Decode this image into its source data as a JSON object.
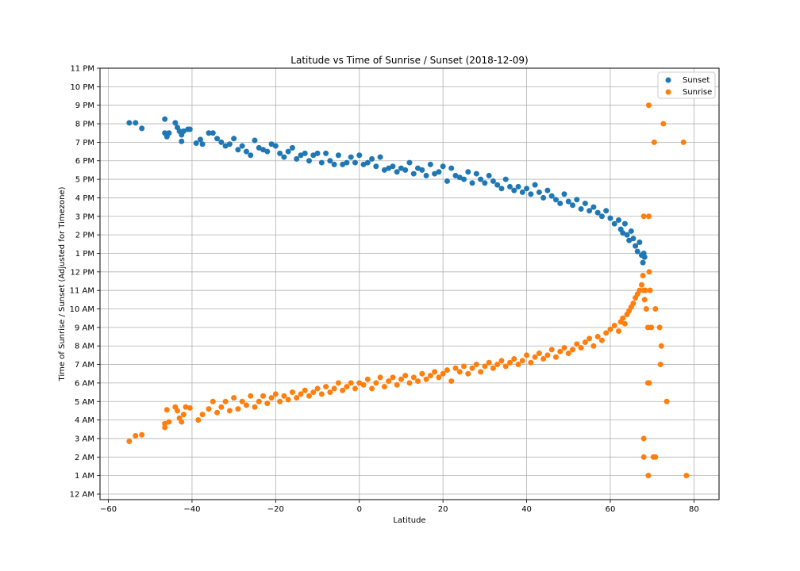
{
  "chart_data": {
    "type": "scatter",
    "title": "Latitude vs Time of Sunrise / Sunset (2018-12-09)",
    "xlabel": "Latitude",
    "ylabel": "Time of Sunrise / Sunset (Adjusted for Timezone)",
    "xlim": [
      -62,
      86
    ],
    "ylim": [
      -0.3,
      23
    ],
    "xticks": [
      -60,
      -40,
      -20,
      0,
      20,
      40,
      60,
      80
    ],
    "yticks": [
      0,
      1,
      2,
      3,
      4,
      5,
      6,
      7,
      8,
      9,
      10,
      11,
      12,
      13,
      14,
      15,
      16,
      17,
      18,
      19,
      20,
      21,
      22,
      23
    ],
    "ytick_labels": [
      "12 AM",
      "1 AM",
      "2 AM",
      "3 AM",
      "4 AM",
      "5 AM",
      "6 AM",
      "7 AM",
      "8 AM",
      "9 AM",
      "10 AM",
      "11 AM",
      "12 PM",
      "1 PM",
      "2 PM",
      "3 PM",
      "4 PM",
      "5 PM",
      "6 PM",
      "7 PM",
      "8 PM",
      "9 PM",
      "10 PM",
      "11 PM"
    ],
    "grid": true,
    "legend_position": "top-right",
    "series": [
      {
        "name": "Sunset",
        "color": "#1f77b4",
        "points": [
          [
            -55,
            20.05
          ],
          [
            -53.5,
            20.05
          ],
          [
            -52,
            19.75
          ],
          [
            -46.5,
            20.25
          ],
          [
            -46.5,
            19.5
          ],
          [
            -46,
            19.3
          ],
          [
            -45.5,
            19.5
          ],
          [
            -44,
            20.05
          ],
          [
            -43.5,
            19.8
          ],
          [
            -43,
            19.6
          ],
          [
            -42.5,
            19.4
          ],
          [
            -42.5,
            19.05
          ],
          [
            -42,
            19.6
          ],
          [
            -41,
            19.7
          ],
          [
            -40.5,
            19.7
          ],
          [
            -39,
            18.95
          ],
          [
            -38,
            19.15
          ],
          [
            -37.5,
            18.9
          ],
          [
            -36,
            19.5
          ],
          [
            -35,
            19.5
          ],
          [
            -34,
            19.2
          ],
          [
            -33,
            19.0
          ],
          [
            -32,
            18.8
          ],
          [
            -31,
            18.9
          ],
          [
            -30,
            19.2
          ],
          [
            -29,
            18.6
          ],
          [
            -28,
            18.8
          ],
          [
            -27,
            18.5
          ],
          [
            -26,
            18.3
          ],
          [
            -25,
            19.1
          ],
          [
            -24,
            18.7
          ],
          [
            -23,
            18.6
          ],
          [
            -22,
            18.5
          ],
          [
            -21,
            18.9
          ],
          [
            -20,
            18.8
          ],
          [
            -19,
            18.4
          ],
          [
            -18,
            18.2
          ],
          [
            -17,
            18.5
          ],
          [
            -16,
            18.7
          ],
          [
            -15,
            18.1
          ],
          [
            -14,
            18.3
          ],
          [
            -13,
            18.4
          ],
          [
            -12,
            18.0
          ],
          [
            -11,
            18.3
          ],
          [
            -10,
            18.4
          ],
          [
            -9,
            17.9
          ],
          [
            -8,
            18.4
          ],
          [
            -7,
            18.0
          ],
          [
            -6,
            17.8
          ],
          [
            -5,
            18.3
          ],
          [
            -4,
            17.8
          ],
          [
            -3,
            17.9
          ],
          [
            -2,
            18.2
          ],
          [
            -1,
            17.9
          ],
          [
            0,
            18.3
          ],
          [
            1,
            17.8
          ],
          [
            2,
            17.9
          ],
          [
            3,
            18.1
          ],
          [
            4,
            17.7
          ],
          [
            5,
            18.2
          ],
          [
            6,
            17.5
          ],
          [
            7,
            17.6
          ],
          [
            8,
            17.7
          ],
          [
            9,
            17.4
          ],
          [
            10,
            17.6
          ],
          [
            11,
            17.5
          ],
          [
            12,
            17.9
          ],
          [
            13,
            17.3
          ],
          [
            14,
            17.6
          ],
          [
            15,
            17.5
          ],
          [
            16,
            17.2
          ],
          [
            17,
            17.8
          ],
          [
            18,
            17.3
          ],
          [
            19,
            17.4
          ],
          [
            20,
            17.7
          ],
          [
            21,
            16.9
          ],
          [
            22,
            17.6
          ],
          [
            23,
            17.2
          ],
          [
            24,
            17.1
          ],
          [
            25,
            17.0
          ],
          [
            26,
            17.4
          ],
          [
            27,
            16.8
          ],
          [
            28,
            17.3
          ],
          [
            29,
            17.0
          ],
          [
            30,
            16.8
          ],
          [
            31,
            17.2
          ],
          [
            32,
            16.9
          ],
          [
            33,
            16.7
          ],
          [
            34,
            16.5
          ],
          [
            35,
            17.0
          ],
          [
            36,
            16.6
          ],
          [
            37,
            16.4
          ],
          [
            38,
            16.6
          ],
          [
            39,
            16.3
          ],
          [
            40,
            16.5
          ],
          [
            41,
            16.2
          ],
          [
            42,
            16.7
          ],
          [
            43,
            16.3
          ],
          [
            44,
            16.0
          ],
          [
            45,
            16.4
          ],
          [
            46,
            16.1
          ],
          [
            47,
            15.9
          ],
          [
            48,
            15.7
          ],
          [
            49,
            16.2
          ],
          [
            50,
            15.8
          ],
          [
            51,
            15.6
          ],
          [
            52,
            15.9
          ],
          [
            53,
            15.4
          ],
          [
            54,
            15.7
          ],
          [
            55,
            15.3
          ],
          [
            56,
            15.5
          ],
          [
            57,
            15.2
          ],
          [
            58,
            15.0
          ],
          [
            59,
            15.3
          ],
          [
            60,
            14.9
          ],
          [
            61,
            14.6
          ],
          [
            62,
            14.8
          ],
          [
            62.5,
            14.3
          ],
          [
            63,
            14.1
          ],
          [
            63.5,
            14.6
          ],
          [
            64,
            14.0
          ],
          [
            64.5,
            13.7
          ],
          [
            65,
            14.2
          ],
          [
            65.5,
            13.8
          ],
          [
            66,
            13.4
          ],
          [
            66.5,
            13.1
          ],
          [
            67,
            13.6
          ],
          [
            67.5,
            12.9
          ],
          [
            67.8,
            12.5
          ],
          [
            68,
            13.0
          ],
          [
            68.2,
            12.8
          ]
        ]
      },
      {
        "name": "Sunrise",
        "color": "#ff7f0e",
        "points": [
          [
            -55,
            2.85
          ],
          [
            -53.5,
            3.15
          ],
          [
            -52,
            3.2
          ],
          [
            -46.5,
            3.6
          ],
          [
            -46.5,
            3.8
          ],
          [
            -46,
            4.55
          ],
          [
            -45.5,
            3.9
          ],
          [
            -44,
            4.7
          ],
          [
            -43.5,
            4.5
          ],
          [
            -43,
            4.1
          ],
          [
            -42.5,
            3.9
          ],
          [
            -42,
            4.3
          ],
          [
            -41.5,
            4.7
          ],
          [
            -40.5,
            4.65
          ],
          [
            -38.5,
            4.0
          ],
          [
            -37.5,
            4.3
          ],
          [
            -36,
            4.6
          ],
          [
            -35,
            5.0
          ],
          [
            -34,
            4.4
          ],
          [
            -33,
            4.7
          ],
          [
            -32,
            5.0
          ],
          [
            -31,
            4.5
          ],
          [
            -30,
            5.2
          ],
          [
            -29,
            4.6
          ],
          [
            -28,
            5.0
          ],
          [
            -27,
            4.8
          ],
          [
            -26,
            5.3
          ],
          [
            -25,
            4.7
          ],
          [
            -24,
            5.0
          ],
          [
            -23,
            5.3
          ],
          [
            -22,
            4.9
          ],
          [
            -21,
            5.2
          ],
          [
            -20,
            5.4
          ],
          [
            -19,
            5.0
          ],
          [
            -18,
            5.3
          ],
          [
            -17,
            5.1
          ],
          [
            -16,
            5.5
          ],
          [
            -15,
            5.2
          ],
          [
            -14,
            5.4
          ],
          [
            -13,
            5.6
          ],
          [
            -12,
            5.3
          ],
          [
            -11,
            5.5
          ],
          [
            -10,
            5.7
          ],
          [
            -9,
            5.4
          ],
          [
            -8,
            5.8
          ],
          [
            -7,
            5.5
          ],
          [
            -6,
            5.7
          ],
          [
            -5,
            6.0
          ],
          [
            -4,
            5.6
          ],
          [
            -3,
            5.8
          ],
          [
            -2,
            6.0
          ],
          [
            -1,
            5.7
          ],
          [
            0,
            6.0
          ],
          [
            1,
            5.9
          ],
          [
            2,
            6.2
          ],
          [
            3,
            5.7
          ],
          [
            4,
            6.0
          ],
          [
            5,
            6.3
          ],
          [
            6,
            5.8
          ],
          [
            7,
            6.1
          ],
          [
            8,
            6.3
          ],
          [
            9,
            5.9
          ],
          [
            10,
            6.2
          ],
          [
            11,
            6.4
          ],
          [
            12,
            6.0
          ],
          [
            13,
            6.3
          ],
          [
            14,
            6.1
          ],
          [
            15,
            6.5
          ],
          [
            16,
            6.2
          ],
          [
            17,
            6.4
          ],
          [
            18,
            6.6
          ],
          [
            19,
            6.3
          ],
          [
            20,
            6.5
          ],
          [
            21,
            6.7
          ],
          [
            22,
            6.1
          ],
          [
            23,
            6.8
          ],
          [
            24,
            6.6
          ],
          [
            25,
            6.9
          ],
          [
            26,
            6.5
          ],
          [
            27,
            6.8
          ],
          [
            28,
            7.0
          ],
          [
            29,
            6.6
          ],
          [
            30,
            6.9
          ],
          [
            31,
            7.1
          ],
          [
            32,
            6.8
          ],
          [
            33,
            7.0
          ],
          [
            34,
            7.2
          ],
          [
            35,
            6.9
          ],
          [
            36,
            7.1
          ],
          [
            37,
            7.3
          ],
          [
            38,
            7.0
          ],
          [
            39,
            7.2
          ],
          [
            40,
            7.5
          ],
          [
            41,
            7.1
          ],
          [
            42,
            7.4
          ],
          [
            43,
            7.6
          ],
          [
            44,
            7.3
          ],
          [
            45,
            7.5
          ],
          [
            46,
            7.8
          ],
          [
            47,
            7.4
          ],
          [
            48,
            7.7
          ],
          [
            49,
            7.9
          ],
          [
            50,
            7.6
          ],
          [
            51,
            7.8
          ],
          [
            52,
            8.1
          ],
          [
            53,
            7.9
          ],
          [
            54,
            8.2
          ],
          [
            55,
            8.4
          ],
          [
            56,
            8.0
          ],
          [
            57,
            8.5
          ],
          [
            58,
            8.3
          ],
          [
            59,
            8.7
          ],
          [
            60,
            8.9
          ],
          [
            61,
            9.1
          ],
          [
            62,
            8.8
          ],
          [
            62.5,
            9.3
          ],
          [
            63,
            9.5
          ],
          [
            63.5,
            9.2
          ],
          [
            64,
            9.7
          ],
          [
            64.5,
            9.9
          ],
          [
            65,
            10.1
          ],
          [
            65.5,
            10.3
          ],
          [
            66,
            10.6
          ],
          [
            66.5,
            10.8
          ],
          [
            67,
            11.0
          ],
          [
            67.5,
            11.3
          ],
          [
            67.8,
            11.8
          ],
          [
            68,
            11.0
          ],
          [
            68.2,
            10.5
          ]
        ]
      },
      {
        "name": "Sunrise",
        "color": "#ff7f0e",
        "points": [
          [
            69.2,
            21.0
          ],
          [
            72.7,
            20.0
          ],
          [
            70.5,
            19.0
          ],
          [
            77.5,
            19.0
          ],
          [
            68.0,
            15.0
          ],
          [
            69.2,
            15.0
          ],
          [
            69.3,
            12.0
          ],
          [
            68.4,
            11.0
          ],
          [
            69.5,
            11.0
          ],
          [
            68.6,
            10.0
          ],
          [
            70.8,
            10.0
          ],
          [
            69.0,
            9.0
          ],
          [
            69.8,
            9.0
          ],
          [
            71.8,
            9.0
          ],
          [
            72.2,
            8.0
          ],
          [
            72.0,
            7.0
          ],
          [
            69.0,
            6.0
          ],
          [
            69.3,
            6.0
          ],
          [
            73.5,
            5.0
          ],
          [
            68.0,
            3.0
          ],
          [
            68.0,
            2.0
          ],
          [
            70.3,
            2.0
          ],
          [
            70.8,
            2.0
          ],
          [
            69.1,
            1.0
          ],
          [
            78.2,
            1.0
          ]
        ]
      }
    ],
    "legend": [
      "Sunset",
      "Sunrise"
    ]
  }
}
